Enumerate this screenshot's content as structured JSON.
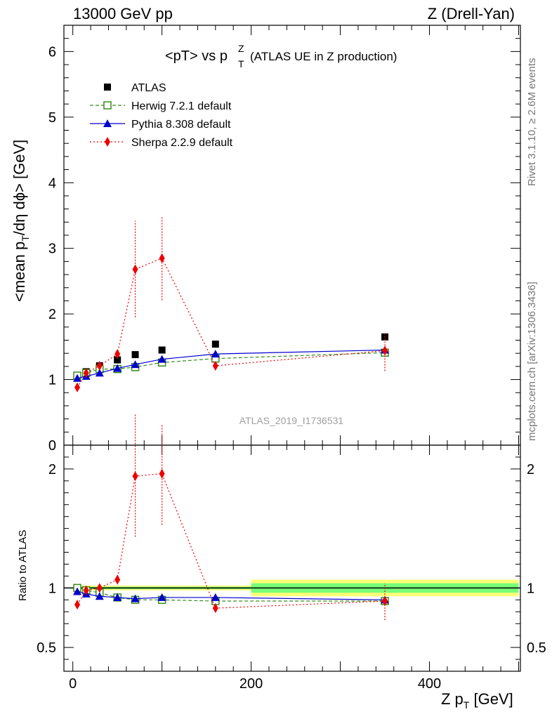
{
  "header": {
    "left": "13000 GeV pp",
    "right": "Z (Drell-Yan)",
    "plot_title": "<pT> vs p",
    "plot_title_sup": "Z",
    "plot_title_sub": "T",
    "plot_title_note": "(ATLAS UE in Z production)",
    "watermark": "ATLAS_2019_I1736531",
    "side_top": "Rivet 3.1.10, ≥ 2.6M events",
    "side_bottom": "mcplots.cern.ch [arXiv:1306.3436]"
  },
  "chart_data": {
    "type": "scatter",
    "x": [
      5,
      15,
      30,
      50,
      70,
      100,
      160,
      350
    ],
    "main": {
      "ylabel": "<mean p_T/dη dϕ> [GeV]",
      "ylim": [
        0,
        6.4
      ],
      "yticks": [
        0,
        1,
        2,
        3,
        4,
        5,
        6
      ],
      "series": [
        {
          "name": "ATLAS",
          "key": "atlas",
          "color": "#000000",
          "values": [
            1.06,
            1.12,
            1.21,
            1.3,
            1.38,
            1.45,
            1.54,
            1.65
          ]
        },
        {
          "name": "Herwig 7.2.1 default",
          "key": "herwig",
          "color": "#3a8c1e",
          "values": [
            1.06,
            1.1,
            1.16,
            1.16,
            1.19,
            1.26,
            1.32,
            1.41
          ]
        },
        {
          "name": "Pythia 8.308 default",
          "key": "pythia",
          "color": "#0000cc",
          "values": [
            1.02,
            1.05,
            1.1,
            1.17,
            1.23,
            1.31,
            1.39,
            1.45
          ]
        },
        {
          "name": "Sherpa 2.2.9 default",
          "key": "sherpa",
          "color": "#ee0000",
          "values": [
            0.88,
            1.1,
            1.21,
            1.39,
            2.68,
            2.85,
            1.21,
            1.44
          ],
          "err_lo": [
            0.84,
            1.05,
            1.17,
            1.34,
            1.95,
            2.21,
            1.16,
            1.13
          ],
          "err_hi": [
            0.92,
            1.15,
            1.25,
            1.44,
            3.42,
            3.48,
            1.27,
            1.72
          ]
        }
      ]
    },
    "ratio": {
      "ylabel": "Ratio to ATLAS",
      "ylim": [
        0.3,
        2.2
      ],
      "yticks": [
        0.5,
        1,
        2
      ],
      "series": [
        {
          "key": "herwig",
          "values": [
            1.0,
            0.98,
            0.96,
            0.92,
            0.9,
            0.9,
            0.89,
            0.89
          ]
        },
        {
          "key": "pythia",
          "values": [
            0.97,
            0.95,
            0.93,
            0.92,
            0.91,
            0.92,
            0.92,
            0.9
          ]
        },
        {
          "key": "sherpa",
          "values": [
            0.86,
            0.98,
            1.0,
            1.07,
            1.94,
            1.96,
            0.83,
            0.89
          ],
          "err_lo": [
            0.83,
            0.95,
            0.97,
            1.03,
            1.43,
            1.53,
            0.8,
            0.73
          ],
          "err_hi": [
            0.89,
            1.01,
            1.04,
            1.11,
            2.46,
            2.38,
            0.86,
            1.04
          ]
        }
      ],
      "band_bins": [
        {
          "lo": 0,
          "hi": 10,
          "inner": 0.01,
          "outer": 0.02
        },
        {
          "lo": 10,
          "hi": 20,
          "inner": 0.01,
          "outer": 0.02
        },
        {
          "lo": 20,
          "hi": 40,
          "inner": 0.01,
          "outer": 0.02
        },
        {
          "lo": 40,
          "hi": 60,
          "inner": 0.01,
          "outer": 0.02
        },
        {
          "lo": 60,
          "hi": 80,
          "inner": 0.01,
          "outer": 0.02
        },
        {
          "lo": 80,
          "hi": 120,
          "inner": 0.01,
          "outer": 0.02
        },
        {
          "lo": 120,
          "hi": 200,
          "inner": 0.01,
          "outer": 0.02
        },
        {
          "lo": 200,
          "hi": 500,
          "inner": 0.04,
          "outer": 0.07
        }
      ]
    },
    "xlabel": "Z p_T [GeV]",
    "xlim": [
      -10,
      502
    ],
    "xticks": [
      0,
      200,
      400
    ]
  }
}
